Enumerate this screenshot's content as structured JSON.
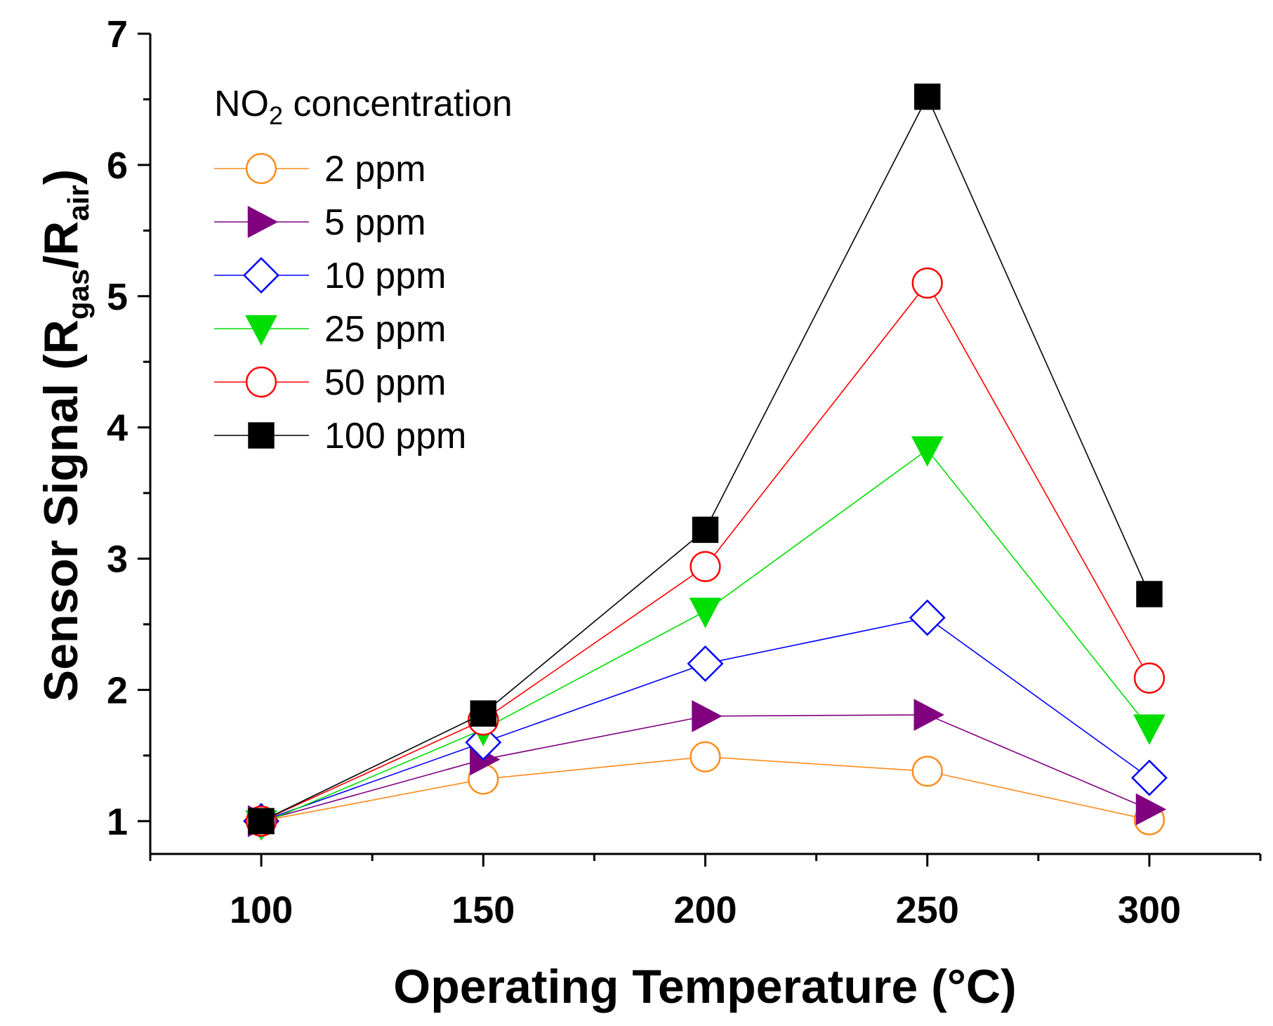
{
  "chart_data": {
    "type": "line",
    "xlabel": "Operating Temperature (°C)",
    "ylabel": {
      "prefix": "Sensor Signal (R",
      "sub1": "gas",
      "mid": "/R",
      "sub2": "air",
      "suffix": ")"
    },
    "xlim": [
      75,
      325
    ],
    "ylim": [
      0.75,
      7
    ],
    "x_ticks": [
      100,
      150,
      200,
      250,
      300
    ],
    "y_ticks": [
      1,
      2,
      3,
      4,
      5,
      6,
      7
    ],
    "grid": false,
    "legend": {
      "position": "top-left",
      "title_prefix": "NO",
      "title_sub": "2",
      "title_suffix": " concentration"
    },
    "x": [
      100,
      150,
      200,
      250,
      300
    ],
    "series": [
      {
        "name": "2 ppm",
        "color": "#FF8C1A",
        "marker": "circle-open",
        "values": [
          1.0,
          1.32,
          1.49,
          1.38,
          1.01
        ]
      },
      {
        "name": "5 ppm",
        "color": "#800080",
        "marker": "triangle-right-filled",
        "values": [
          1.0,
          1.47,
          1.8,
          1.81,
          1.09
        ]
      },
      {
        "name": "10 ppm",
        "color": "#0000FF",
        "marker": "diamond-open",
        "values": [
          1.0,
          1.6,
          2.2,
          2.55,
          1.33
        ]
      },
      {
        "name": "25 ppm",
        "color": "#00DD00",
        "marker": "triangle-down-filled",
        "values": [
          0.98,
          1.7,
          2.6,
          3.83,
          1.71
        ]
      },
      {
        "name": "50 ppm",
        "color": "#FF0000",
        "marker": "circle-open",
        "values": [
          1.0,
          1.77,
          2.94,
          5.1,
          2.09
        ]
      },
      {
        "name": "100 ppm",
        "color": "#000000",
        "marker": "square-filled",
        "values": [
          1.0,
          1.82,
          3.22,
          6.52,
          2.73
        ]
      }
    ]
  }
}
